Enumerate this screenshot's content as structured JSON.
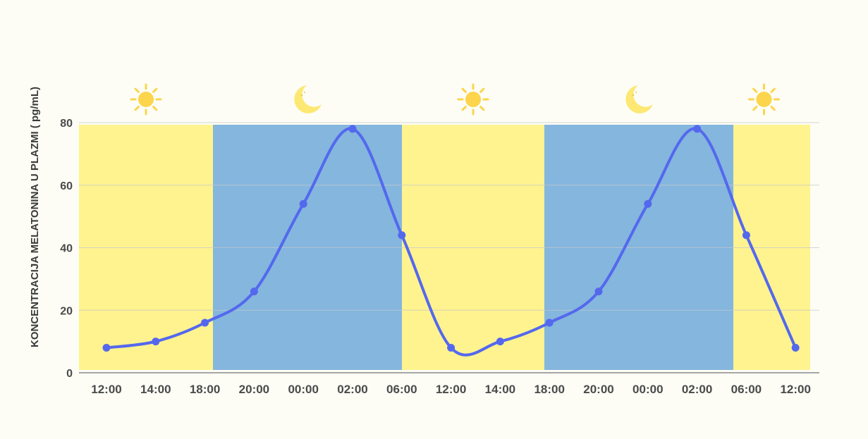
{
  "chart_data": {
    "type": "line",
    "title": "",
    "xlabel": "",
    "ylabel": "KONCENTRACIJA MELATONINA U PLAZMI ( pg/mL)",
    "ylim": [
      0,
      80
    ],
    "yticks": [
      0,
      20,
      40,
      60,
      80
    ],
    "grid": true,
    "categories": [
      "12:00",
      "14:00",
      "18:00",
      "20:00",
      "00:00",
      "02:00",
      "06:00",
      "12:00",
      "14:00",
      "18:00",
      "20:00",
      "00:00",
      "02:00",
      "06:00",
      "12:00"
    ],
    "series": [
      {
        "values": [
          8,
          10,
          16,
          26,
          54,
          78,
          44,
          8,
          10,
          16,
          26,
          54,
          78,
          44,
          8
        ]
      }
    ],
    "background_bands": [
      {
        "kind": "day",
        "from": "12:00",
        "to": "18:00"
      },
      {
        "kind": "night",
        "from": "18:00",
        "to": "06:00"
      },
      {
        "kind": "day",
        "from": "06:00",
        "to": "18:00"
      },
      {
        "kind": "night",
        "from": "18:00",
        "to": "06:00"
      },
      {
        "kind": "day",
        "from": "06:00",
        "to": "12:00"
      }
    ],
    "band_icons": [
      "sun-icon",
      "moon-icon",
      "sun-icon",
      "moon-icon",
      "sun-icon"
    ],
    "colors": {
      "day_band": "#fff38f",
      "night_band": "#84b6de",
      "line": "#5468ee",
      "icon_sun": "#fcd54c",
      "icon_moon": "#fde873",
      "grid": "#c8c8c8",
      "axis": "#8a8a8a"
    }
  }
}
